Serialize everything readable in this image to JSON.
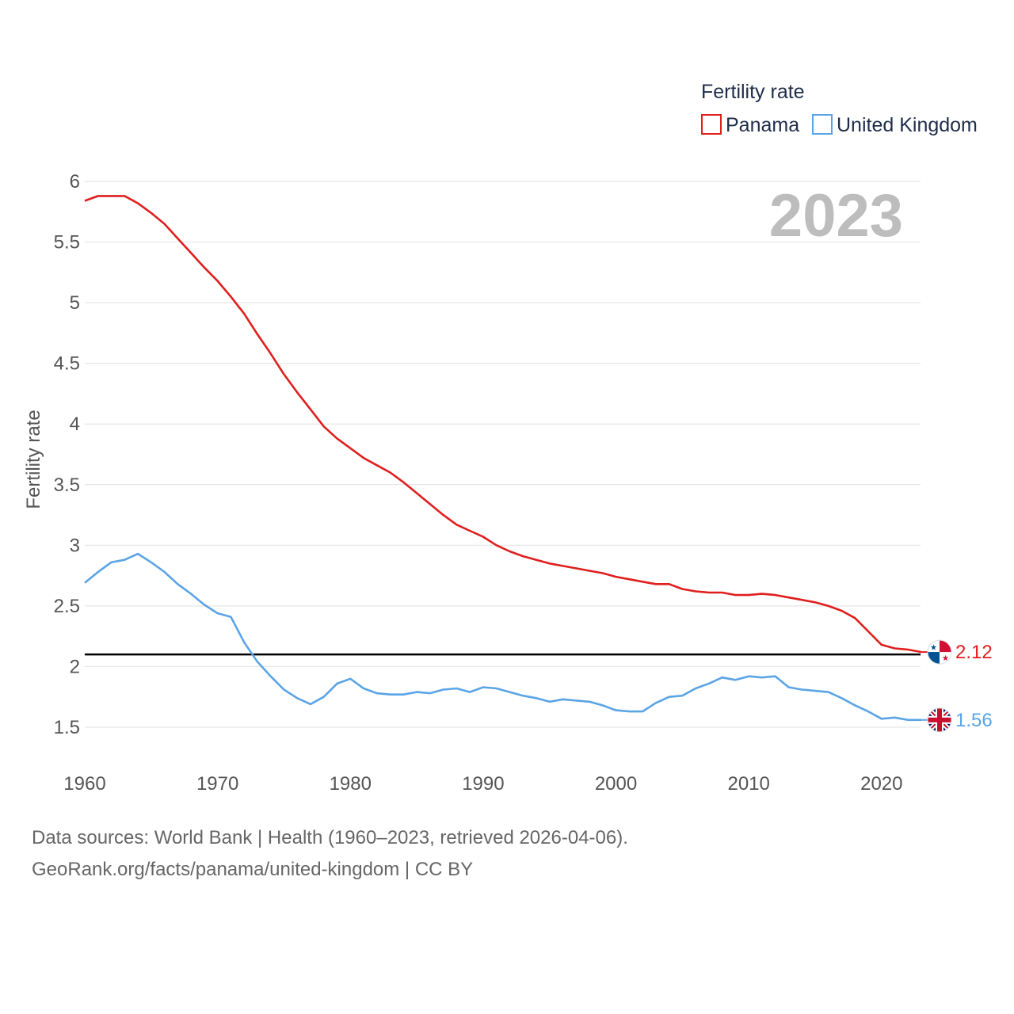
{
  "chart_data": {
    "type": "line",
    "legend_title": "Fertility rate",
    "ylabel": "Fertility rate",
    "year_label": "2023",
    "ylim": [
      1.25,
      6
    ],
    "yticks": [
      1.5,
      2,
      2.5,
      3,
      3.5,
      4,
      4.5,
      5,
      5.5,
      6
    ],
    "ytick_labels": [
      "1.5",
      "2",
      "2.5",
      "3",
      "3.5",
      "4",
      "4.5",
      "5",
      "5.5",
      "6"
    ],
    "xlim": [
      1960,
      2023
    ],
    "xticks": [
      1960,
      1970,
      1980,
      1990,
      2000,
      2010,
      2020
    ],
    "xtick_labels": [
      "1960",
      "1970",
      "1980",
      "1990",
      "2000",
      "2010",
      "2020"
    ],
    "reference_line": 2.1,
    "x": [
      1960,
      1961,
      1962,
      1963,
      1964,
      1965,
      1966,
      1967,
      1968,
      1969,
      1970,
      1971,
      1972,
      1973,
      1974,
      1975,
      1976,
      1977,
      1978,
      1979,
      1980,
      1981,
      1982,
      1983,
      1984,
      1985,
      1986,
      1987,
      1988,
      1989,
      1990,
      1991,
      1992,
      1993,
      1994,
      1995,
      1996,
      1997,
      1998,
      1999,
      2000,
      2001,
      2002,
      2003,
      2004,
      2005,
      2006,
      2007,
      2008,
      2009,
      2010,
      2011,
      2012,
      2013,
      2014,
      2015,
      2016,
      2017,
      2018,
      2019,
      2020,
      2021,
      2022,
      2023
    ],
    "series": [
      {
        "name": "Panama",
        "color": "#e01e1e",
        "end_label": "2.12",
        "flag": "panama",
        "values": [
          5.84,
          5.88,
          5.88,
          5.88,
          5.82,
          5.74,
          5.65,
          5.53,
          5.41,
          5.29,
          5.18,
          5.05,
          4.91,
          4.74,
          4.58,
          4.41,
          4.26,
          4.12,
          3.98,
          3.88,
          3.8,
          3.72,
          3.66,
          3.6,
          3.52,
          3.43,
          3.34,
          3.25,
          3.17,
          3.12,
          3.07,
          3.0,
          2.95,
          2.91,
          2.88,
          2.85,
          2.83,
          2.81,
          2.79,
          2.77,
          2.74,
          2.72,
          2.7,
          2.68,
          2.68,
          2.64,
          2.62,
          2.61,
          2.61,
          2.59,
          2.59,
          2.6,
          2.59,
          2.57,
          2.55,
          2.53,
          2.5,
          2.46,
          2.4,
          2.29,
          2.18,
          2.15,
          2.14,
          2.12
        ]
      },
      {
        "name": "United Kingdom",
        "color": "#5ba4e6",
        "end_label": "1.56",
        "flag": "uk",
        "values": [
          2.69,
          2.78,
          2.86,
          2.88,
          2.93,
          2.86,
          2.78,
          2.68,
          2.6,
          2.51,
          2.44,
          2.41,
          2.2,
          2.04,
          1.92,
          1.81,
          1.74,
          1.69,
          1.75,
          1.86,
          1.9,
          1.82,
          1.78,
          1.77,
          1.77,
          1.79,
          1.78,
          1.81,
          1.82,
          1.79,
          1.83,
          1.82,
          1.79,
          1.76,
          1.74,
          1.71,
          1.73,
          1.72,
          1.71,
          1.68,
          1.64,
          1.63,
          1.63,
          1.7,
          1.75,
          1.76,
          1.82,
          1.86,
          1.91,
          1.89,
          1.92,
          1.91,
          1.92,
          1.83,
          1.81,
          1.8,
          1.79,
          1.74,
          1.68,
          1.63,
          1.57,
          1.58,
          1.56,
          1.56
        ]
      }
    ]
  },
  "footer": {
    "line1": "Data sources: World Bank | Health (1960–2023, retrieved 2026-04-06).",
    "line2": "GeoRank.org/facts/panama/united-kingdom | CC BY"
  }
}
